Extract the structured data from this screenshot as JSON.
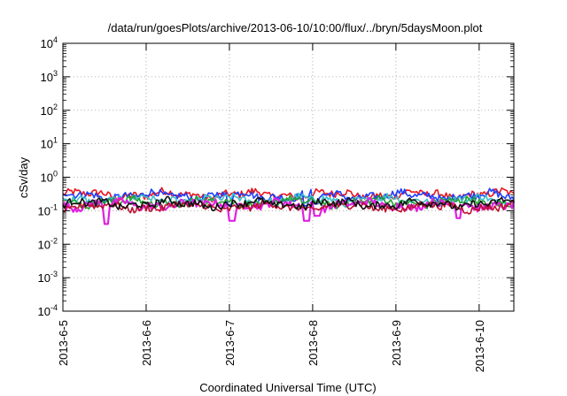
{
  "chart_data": {
    "type": "line",
    "title": "/data/run/goesPlots/archive/2013-06-10/10:00/flux/../bryn/5daysMoon.plot",
    "xlabel": "Coordinated Universal Time (UTC)",
    "ylabel": "cSv/day",
    "yscale": "log",
    "ylim": [
      0.0001,
      10000
    ],
    "xlim": [
      "2013-06-05 00:00",
      "2013-06-10 10:00"
    ],
    "x_ticks": [
      "2013-6-5",
      "2013-6-6",
      "2013-6-7",
      "2013-6-8",
      "2013-6-9",
      "2013-6-10"
    ],
    "y_ticks": [
      {
        "base": "10",
        "exp": "-4"
      },
      {
        "base": "10",
        "exp": "-3"
      },
      {
        "base": "10",
        "exp": "-2"
      },
      {
        "base": "10",
        "exp": "-1"
      },
      {
        "base": "10",
        "exp": "0"
      },
      {
        "base": "10",
        "exp": "1"
      },
      {
        "base": "10",
        "exp": "2"
      },
      {
        "base": "10",
        "exp": "3"
      },
      {
        "base": "10",
        "exp": "4"
      }
    ],
    "grid": true,
    "series": [
      {
        "color": "#e8141e",
        "level": 0.3,
        "dips": []
      },
      {
        "color": "#1f3fff",
        "level": 0.28,
        "dips": [
          {
            "day": 2.0,
            "value": 0.15
          },
          {
            "day": 2.92,
            "value": 0.14
          },
          {
            "day": 3.03,
            "value": 0.16
          }
        ]
      },
      {
        "color": "#3bc0c8",
        "level": 0.21,
        "dips": []
      },
      {
        "color": "#22a032",
        "level": 0.18,
        "dips": []
      },
      {
        "color": "#e020e0",
        "level": 0.15,
        "dips": [
          {
            "day": 0.52,
            "value": 0.04
          },
          {
            "day": 2.03,
            "value": 0.05
          },
          {
            "day": 2.93,
            "value": 0.05
          },
          {
            "day": 3.05,
            "value": 0.07
          },
          {
            "day": 4.75,
            "value": 0.06
          }
        ]
      },
      {
        "color": "#bb1030",
        "level": 0.13,
        "dips": []
      },
      {
        "color": "#111111",
        "level": 0.16,
        "dips": []
      }
    ]
  }
}
